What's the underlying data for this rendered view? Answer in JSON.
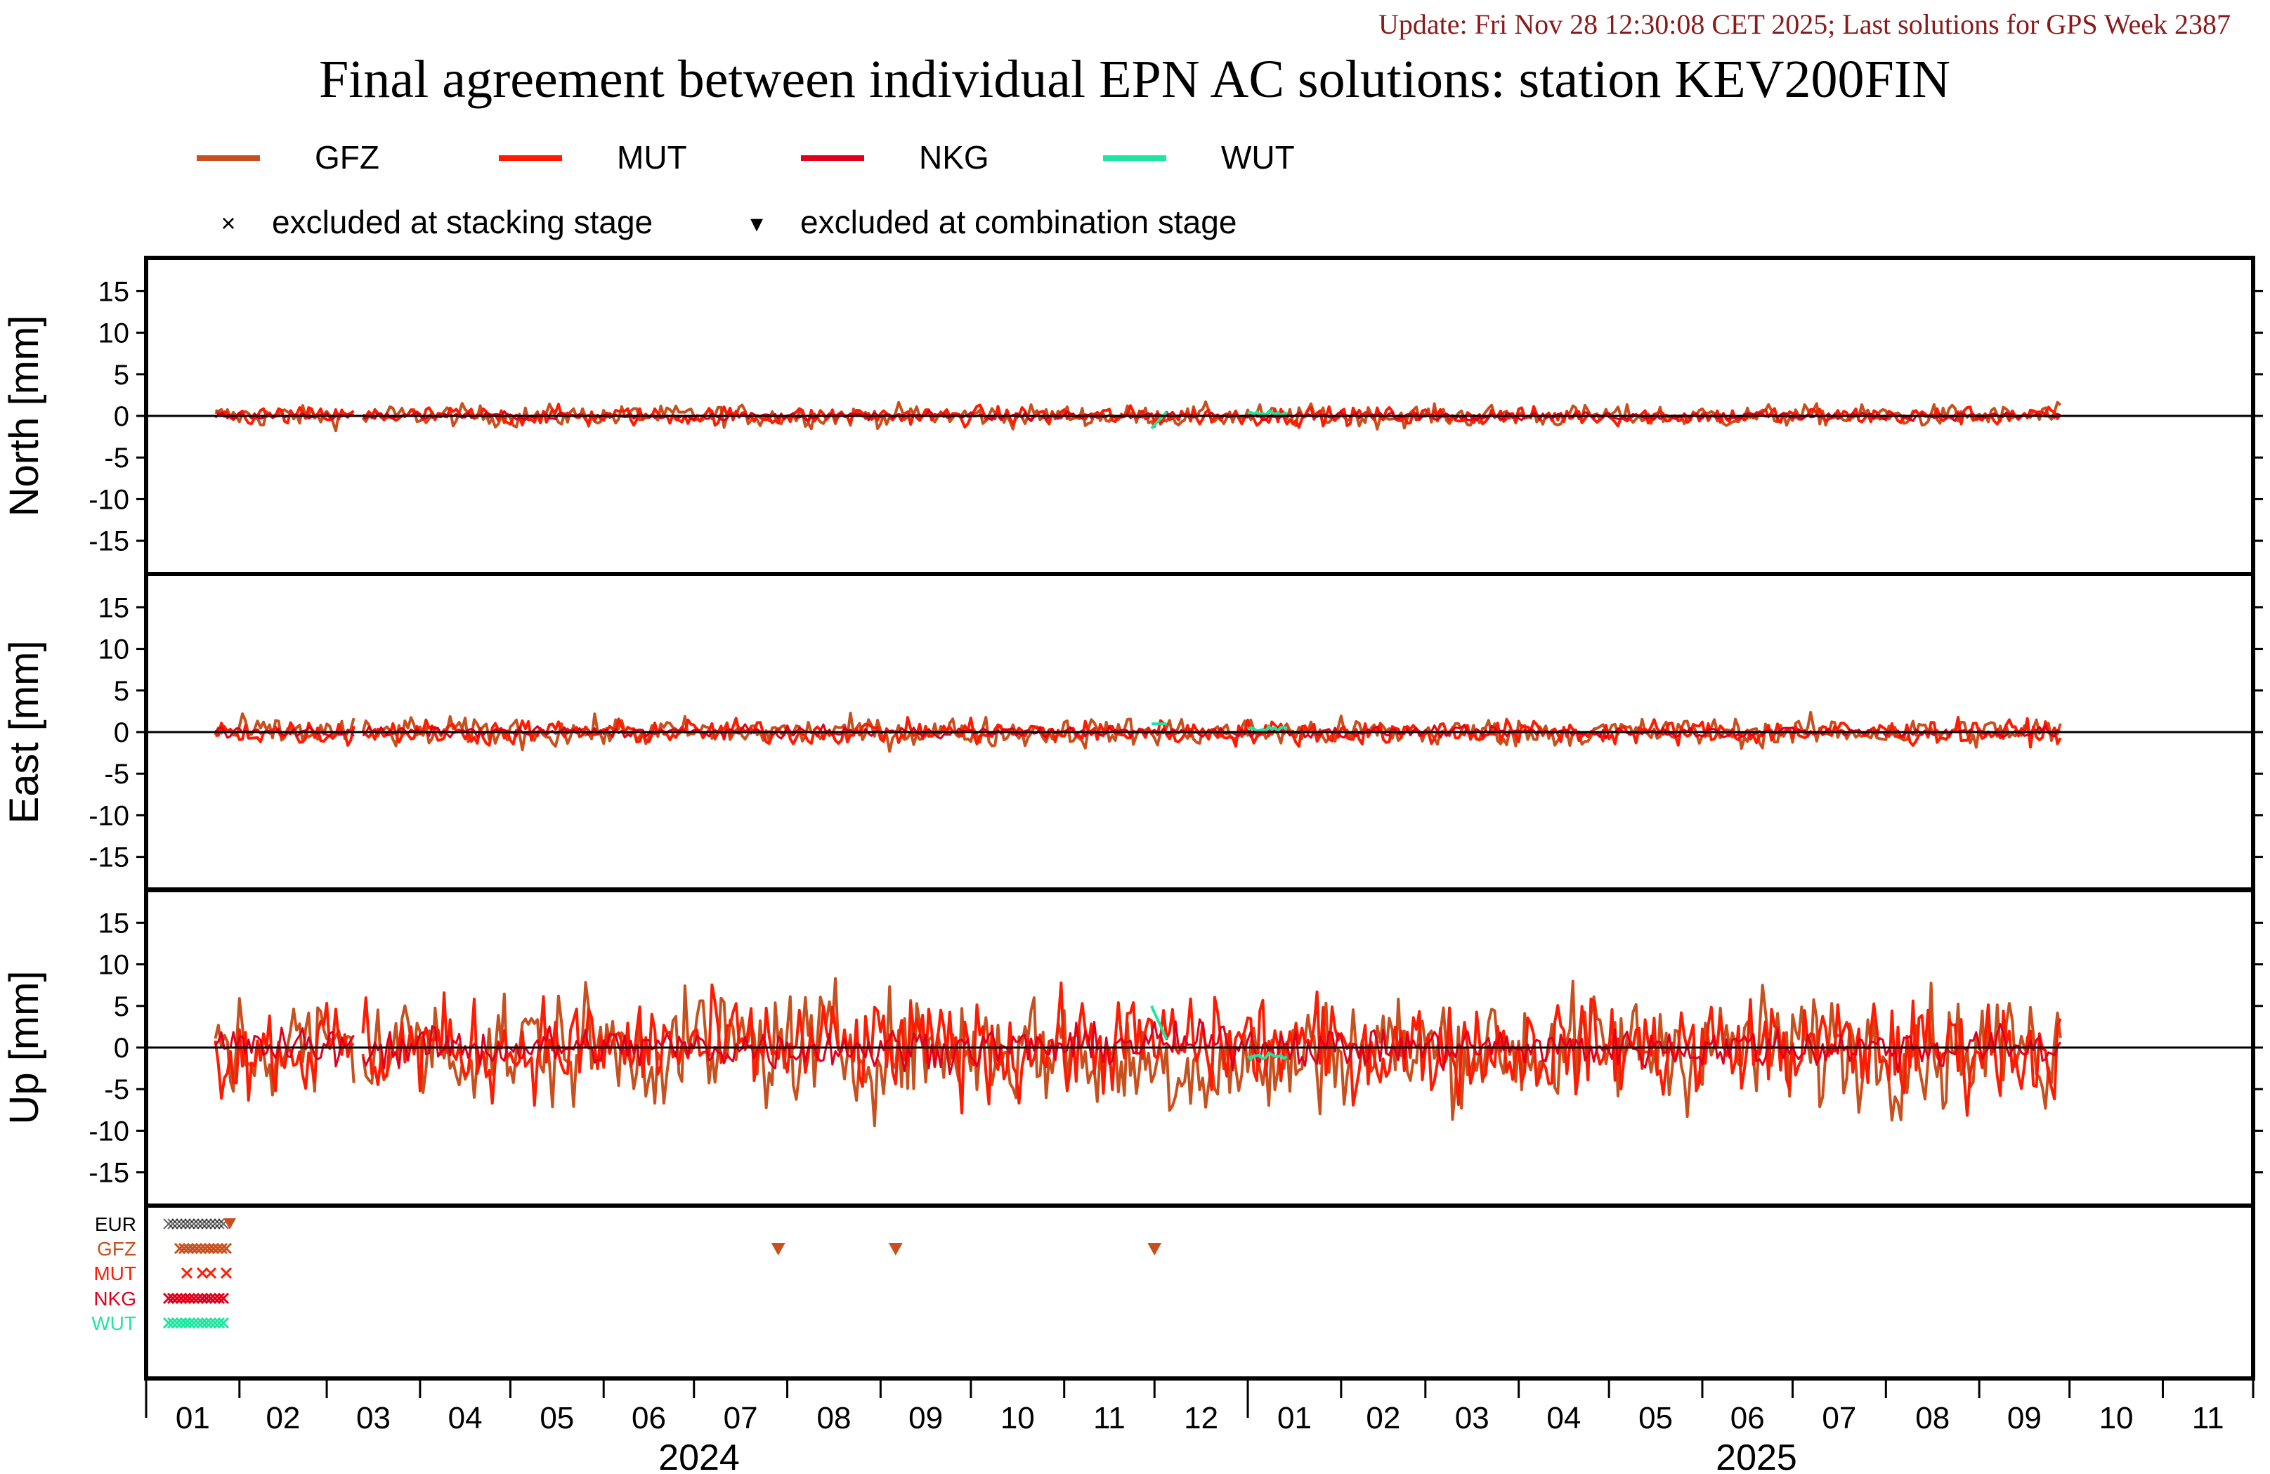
{
  "header": {
    "update_text": "Update: Fri Nov 28 12:30:08 CET 2025; Last solutions for GPS Week 2387",
    "title": "Final agreement between individual EPN AC solutions: station KEV200FIN"
  },
  "legend": {
    "series": [
      {
        "name": "GFZ",
        "color": "#c8501e"
      },
      {
        "name": "MUT",
        "color": "#ff1a00"
      },
      {
        "name": "NKG",
        "color": "#e0001c"
      },
      {
        "name": "WUT",
        "color": "#1ee6a0"
      }
    ],
    "markers": [
      {
        "symbol": "×",
        "label": "excluded at stacking stage"
      },
      {
        "symbol": "▾",
        "label": "excluded at combination stage"
      }
    ]
  },
  "chart_data": {
    "type": "line",
    "x_axis": {
      "month_ticks": [
        "01",
        "02",
        "03",
        "04",
        "05",
        "06",
        "07",
        "08",
        "09",
        "10",
        "11",
        "12",
        "01",
        "02",
        "03",
        "04",
        "05",
        "06",
        "07",
        "08",
        "09",
        "10",
        "11"
      ],
      "years": [
        "2024",
        "2025"
      ],
      "range": [
        "2024-01",
        "2025-11"
      ]
    },
    "panels": [
      {
        "ylabel": "North [mm]",
        "ylim": [
          -19,
          19
        ],
        "yticks": [
          15,
          10,
          5,
          0,
          -5,
          -10,
          -15
        ],
        "noise_amplitude_mm": 1.5
      },
      {
        "ylabel": "East [mm]",
        "ylim": [
          -19,
          19
        ],
        "yticks": [
          15,
          10,
          5,
          0,
          -5,
          -10,
          -15
        ],
        "noise_amplitude_mm": 2
      },
      {
        "ylabel": "Up [mm]",
        "ylim": [
          -19,
          19
        ],
        "yticks": [
          15,
          10,
          5,
          0,
          -5,
          -10,
          -15
        ],
        "noise_amplitude_mm": 8
      }
    ],
    "series": [
      {
        "name": "GFZ",
        "color": "#c8501e"
      },
      {
        "name": "MUT",
        "color": "#ff1a00"
      },
      {
        "name": "NKG",
        "color": "#e0001c"
      },
      {
        "name": "WUT",
        "color": "#1ee6a0"
      }
    ],
    "exclusion_panel": {
      "rows": [
        {
          "name": "EUR",
          "color": "#000000"
        },
        {
          "name": "GFZ",
          "color": "#c8501e"
        },
        {
          "name": "MUT",
          "color": "#ff1a00"
        },
        {
          "name": "NKG",
          "color": "#e0001c"
        },
        {
          "name": "WUT",
          "color": "#1ee6a0"
        }
      ],
      "combination_exclusions_gfz": [
        "2024-07-29",
        "2024-09-06",
        "2024-12-01"
      ]
    }
  }
}
